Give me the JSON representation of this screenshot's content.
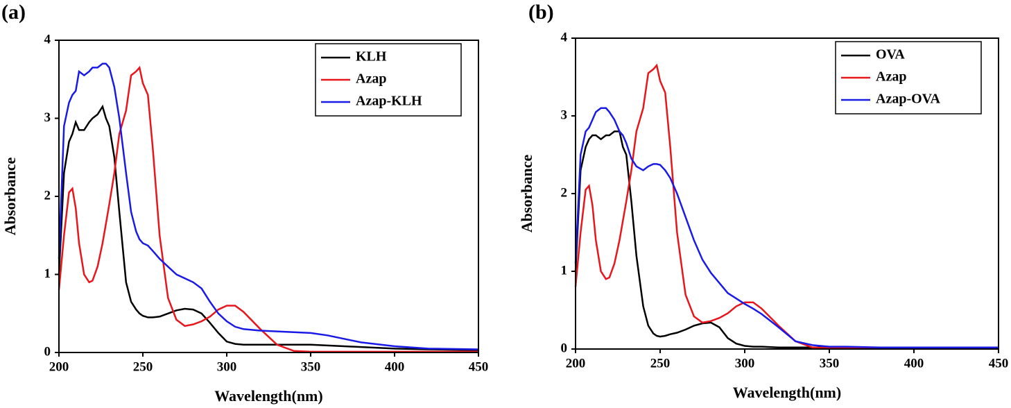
{
  "chart_data": [
    {
      "type": "line",
      "title": "(a)",
      "xlabel": "Wavelength(nm)",
      "ylabel": "Absorbance",
      "x": [
        200,
        203,
        206,
        208,
        210,
        212,
        215,
        218,
        220,
        223,
        226,
        228,
        230,
        233,
        236,
        240,
        243,
        246,
        248,
        250,
        253,
        256,
        260,
        265,
        270,
        275,
        280,
        285,
        290,
        295,
        300,
        305,
        310,
        320,
        330,
        340,
        350,
        360,
        380,
        400,
        420,
        450
      ],
      "series": [
        {
          "name": "KLH",
          "color": "#000000",
          "values": [
            1.0,
            2.3,
            2.7,
            2.8,
            2.95,
            2.85,
            2.85,
            2.95,
            3.0,
            3.05,
            3.15,
            3.0,
            2.9,
            2.5,
            1.8,
            0.9,
            0.65,
            0.55,
            0.5,
            0.47,
            0.45,
            0.45,
            0.46,
            0.5,
            0.54,
            0.56,
            0.55,
            0.5,
            0.38,
            0.25,
            0.14,
            0.11,
            0.1,
            0.1,
            0.1,
            0.1,
            0.1,
            0.09,
            0.07,
            0.05,
            0.04,
            0.03
          ]
        },
        {
          "name": "Azap",
          "color": "#e8151b",
          "values": [
            0.8,
            1.5,
            2.05,
            2.1,
            1.85,
            1.4,
            1.0,
            0.9,
            0.92,
            1.1,
            1.4,
            1.65,
            1.9,
            2.3,
            2.8,
            3.1,
            3.55,
            3.6,
            3.65,
            3.45,
            3.3,
            2.6,
            1.5,
            0.7,
            0.42,
            0.34,
            0.36,
            0.4,
            0.46,
            0.55,
            0.6,
            0.6,
            0.52,
            0.3,
            0.1,
            0.02,
            0.01,
            0.01,
            0.01,
            0.01,
            0.01,
            0.01
          ]
        },
        {
          "name": "Azap-KLH",
          "color": "#1a1ae6",
          "values": [
            1.2,
            2.9,
            3.2,
            3.3,
            3.35,
            3.6,
            3.55,
            3.6,
            3.65,
            3.65,
            3.7,
            3.7,
            3.65,
            3.4,
            3.0,
            2.3,
            1.8,
            1.55,
            1.45,
            1.4,
            1.37,
            1.3,
            1.2,
            1.1,
            1.0,
            0.95,
            0.9,
            0.82,
            0.65,
            0.5,
            0.4,
            0.33,
            0.3,
            0.28,
            0.27,
            0.26,
            0.25,
            0.22,
            0.13,
            0.08,
            0.05,
            0.04
          ]
        }
      ],
      "xlim": [
        200,
        450
      ],
      "ylim": [
        0,
        4
      ],
      "xticks": [
        200,
        250,
        300,
        350,
        400,
        450
      ],
      "yticks": [
        0,
        1,
        2,
        3,
        4
      ],
      "legend_position": "top-right"
    },
    {
      "type": "line",
      "title": "(b)",
      "xlabel": "Wavelength(nm)",
      "ylabel": "Absorbance",
      "x": [
        200,
        203,
        206,
        208,
        210,
        212,
        215,
        218,
        220,
        223,
        226,
        228,
        230,
        233,
        236,
        240,
        243,
        246,
        248,
        250,
        253,
        256,
        260,
        265,
        270,
        275,
        280,
        285,
        290,
        295,
        300,
        305,
        310,
        320,
        330,
        340,
        350,
        360,
        380,
        400,
        420,
        450
      ],
      "series": [
        {
          "name": "OVA",
          "color": "#000000",
          "values": [
            1.0,
            2.3,
            2.6,
            2.7,
            2.75,
            2.75,
            2.7,
            2.75,
            2.75,
            2.8,
            2.8,
            2.6,
            2.5,
            1.9,
            1.2,
            0.55,
            0.3,
            0.2,
            0.17,
            0.16,
            0.17,
            0.19,
            0.21,
            0.25,
            0.3,
            0.33,
            0.34,
            0.28,
            0.14,
            0.07,
            0.04,
            0.03,
            0.03,
            0.02,
            0.02,
            0.02,
            0.02,
            0.02,
            0.02,
            0.02,
            0.02,
            0.02
          ]
        },
        {
          "name": "Azap",
          "color": "#e8151b",
          "values": [
            0.8,
            1.5,
            2.05,
            2.1,
            1.85,
            1.4,
            1.0,
            0.9,
            0.92,
            1.1,
            1.4,
            1.65,
            1.9,
            2.3,
            2.8,
            3.1,
            3.55,
            3.6,
            3.65,
            3.45,
            3.3,
            2.6,
            1.5,
            0.7,
            0.42,
            0.34,
            0.36,
            0.4,
            0.46,
            0.55,
            0.6,
            0.6,
            0.52,
            0.3,
            0.1,
            0.02,
            0.01,
            0.01,
            0.01,
            0.01,
            0.01,
            0.01
          ]
        },
        {
          "name": "Azap-OVA",
          "color": "#1a1ae6",
          "values": [
            1.1,
            2.5,
            2.8,
            2.85,
            2.95,
            3.05,
            3.1,
            3.1,
            3.05,
            2.95,
            2.8,
            2.75,
            2.65,
            2.45,
            2.35,
            2.3,
            2.35,
            2.38,
            2.38,
            2.37,
            2.3,
            2.2,
            2.0,
            1.7,
            1.4,
            1.15,
            0.98,
            0.85,
            0.72,
            0.65,
            0.58,
            0.52,
            0.45,
            0.28,
            0.1,
            0.05,
            0.03,
            0.03,
            0.02,
            0.02,
            0.02,
            0.02
          ]
        }
      ],
      "xlim": [
        200,
        450
      ],
      "ylim": [
        0,
        4
      ],
      "xticks": [
        200,
        250,
        300,
        350,
        400,
        450
      ],
      "yticks": [
        0,
        1,
        2,
        3,
        4
      ],
      "legend_position": "top-right"
    }
  ]
}
